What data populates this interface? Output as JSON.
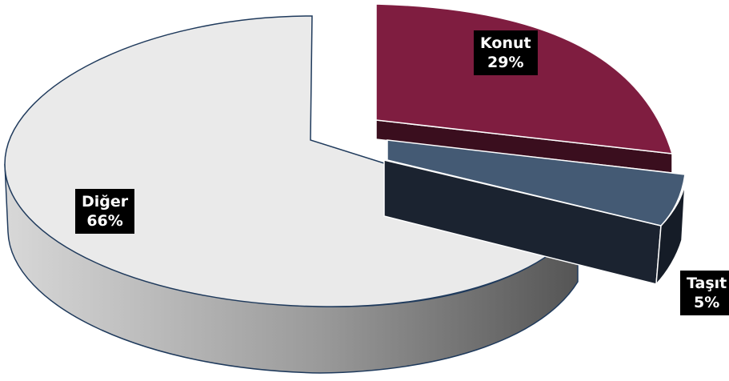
{
  "chart_data": {
    "type": "pie",
    "title": "",
    "slices": [
      {
        "label": "Konut",
        "value": 29,
        "value_label": "29%",
        "color": "#7f1d40"
      },
      {
        "label": "Taşıt",
        "value": 5,
        "value_label": "5%",
        "color": "#445a74"
      },
      {
        "label": "Diğer",
        "value": 66,
        "value_label": "66%",
        "color": "#eaeaea"
      }
    ],
    "style": "3d-exploded",
    "legend": "none"
  }
}
